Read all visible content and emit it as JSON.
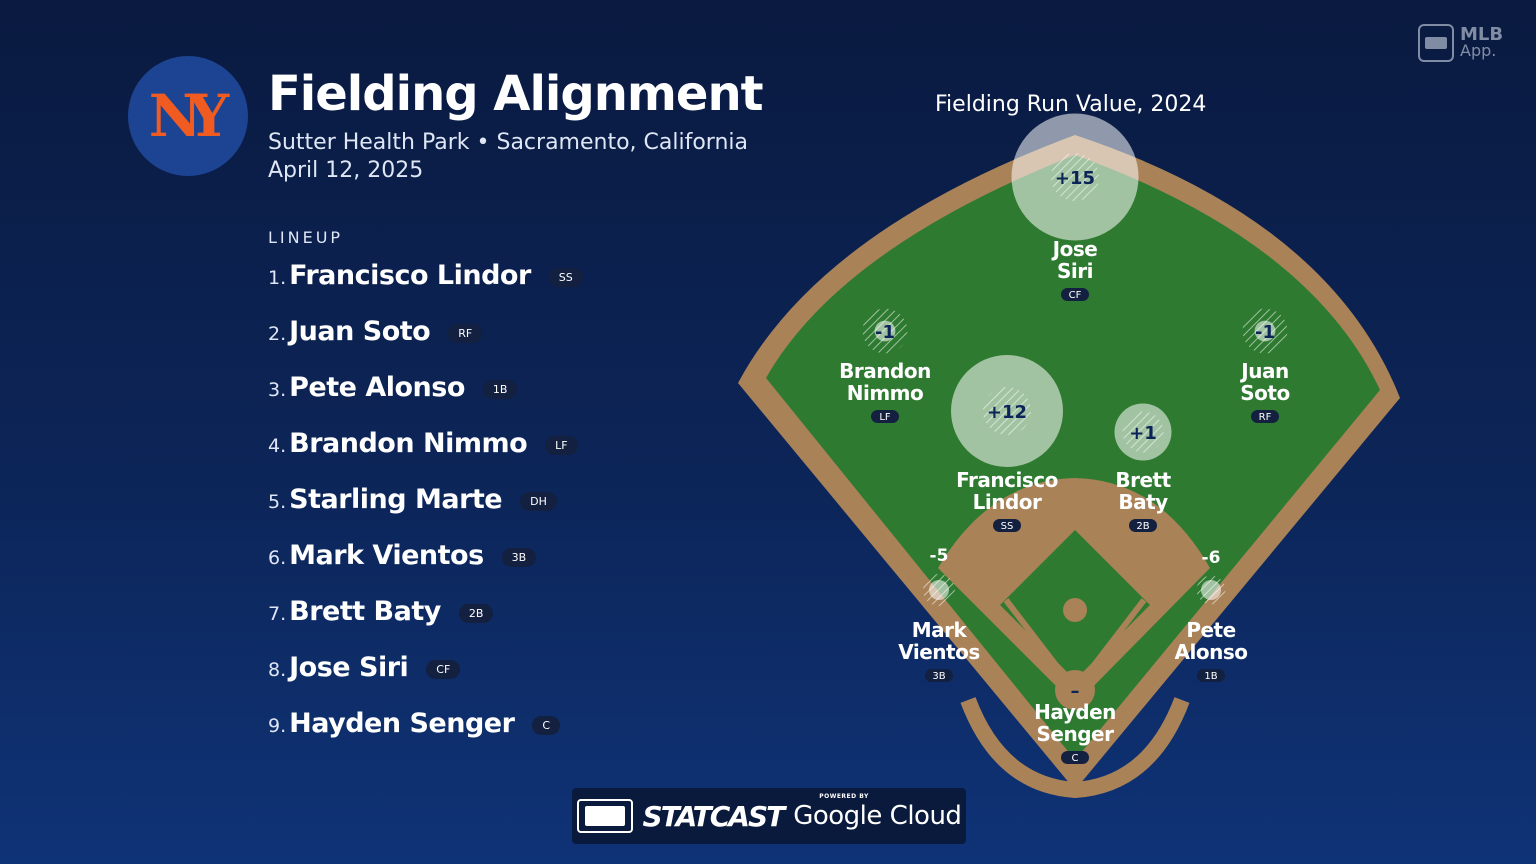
{
  "header": {
    "logo_text": "NY",
    "title": "Fielding Alignment",
    "subtitle": "Sutter Health Park • Sacramento, California",
    "date": "April 12, 2025"
  },
  "brand": {
    "app_line1": "MLB",
    "app_line2": "App."
  },
  "lineup": {
    "label": "LINEUP",
    "items": [
      {
        "num": "1.",
        "name": "Francisco Lindor",
        "pos": "SS"
      },
      {
        "num": "2.",
        "name": "Juan Soto",
        "pos": "RF"
      },
      {
        "num": "3.",
        "name": "Pete Alonso",
        "pos": "1B"
      },
      {
        "num": "4.",
        "name": "Brandon Nimmo",
        "pos": "LF"
      },
      {
        "num": "5.",
        "name": "Starling Marte",
        "pos": "DH"
      },
      {
        "num": "6.",
        "name": "Mark Vientos",
        "pos": "3B"
      },
      {
        "num": "7.",
        "name": "Brett Baty",
        "pos": "2B"
      },
      {
        "num": "8.",
        "name": "Jose Siri",
        "pos": "CF"
      },
      {
        "num": "9.",
        "name": "Hayden Senger",
        "pos": "C"
      }
    ]
  },
  "field": {
    "title": "Fielding Run Value, 2024",
    "players": [
      {
        "key": "cf",
        "first": "Jose",
        "last": "Siri",
        "pos": "CF",
        "value": "+15",
        "frv": 15
      },
      {
        "key": "lf",
        "first": "Brandon",
        "last": "Nimmo",
        "pos": "LF",
        "value": "-1",
        "frv": -1
      },
      {
        "key": "rf",
        "first": "Juan",
        "last": "Soto",
        "pos": "RF",
        "value": "-1",
        "frv": -1
      },
      {
        "key": "ss",
        "first": "Francisco",
        "last": "Lindor",
        "pos": "SS",
        "value": "+12",
        "frv": 12
      },
      {
        "key": "2b",
        "first": "Brett",
        "last": "Baty",
        "pos": "2B",
        "value": "+1",
        "frv": 1
      },
      {
        "key": "3b",
        "first": "Mark",
        "last": "Vientos",
        "pos": "3B",
        "value": "-5",
        "frv": -5
      },
      {
        "key": "1b",
        "first": "Pete",
        "last": "Alonso",
        "pos": "1B",
        "value": "-6",
        "frv": -6
      },
      {
        "key": "c",
        "first": "Hayden",
        "last": "Senger",
        "pos": "C",
        "value": "–",
        "frv": null
      }
    ]
  },
  "footer": {
    "statcast": "STATCAST",
    "powered_by": "POWERED BY",
    "partner": "Google Cloud"
  },
  "colors": {
    "grass": "#2f7a31",
    "dirt": "#a98258",
    "navy": "#0c2558",
    "badge": "#13203f",
    "mets_orange": "#f05b22",
    "mets_blue": "#1c4493"
  }
}
